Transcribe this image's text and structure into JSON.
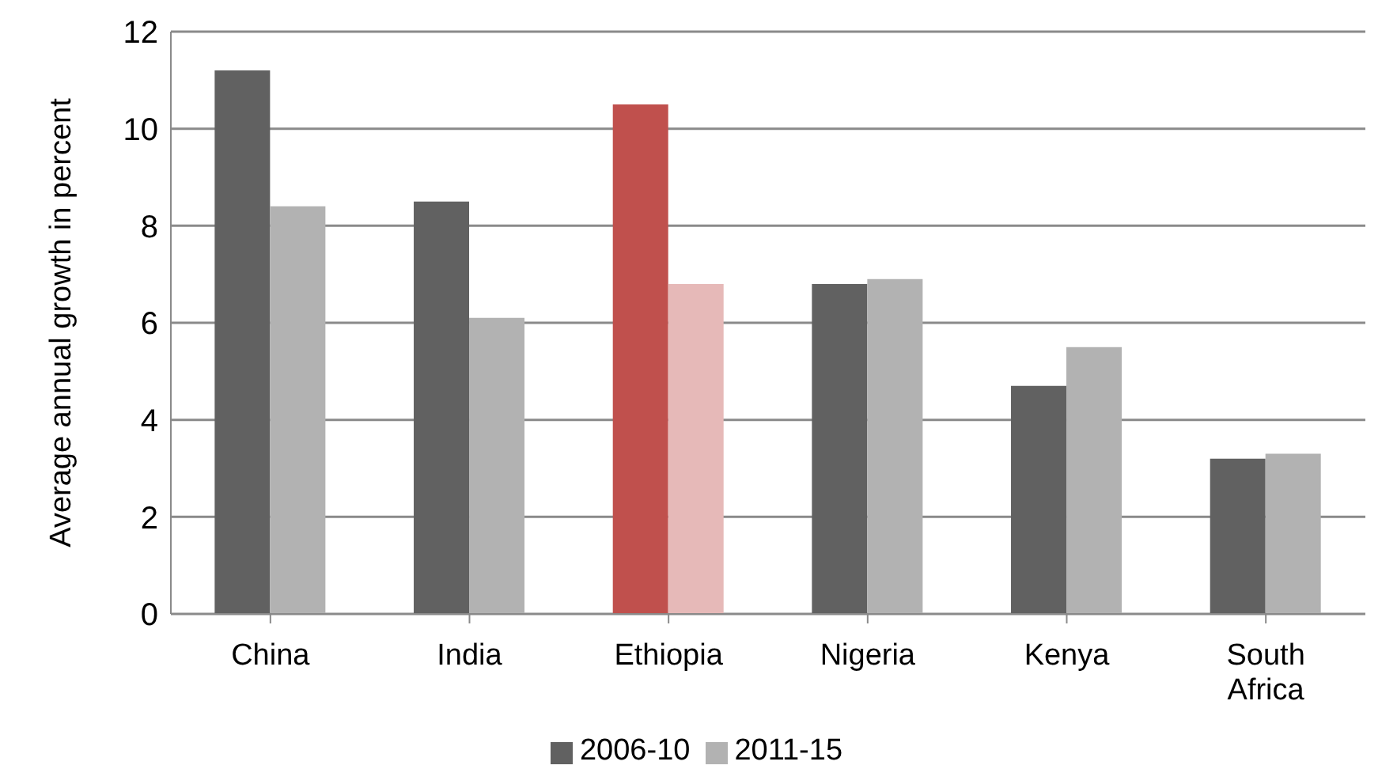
{
  "chart_data": {
    "type": "bar",
    "ylabel": "Average annual  growth in percent",
    "categories": [
      "China",
      "India",
      "Ethiopia",
      "Nigeria",
      "Kenya",
      "South Africa"
    ],
    "series": [
      {
        "name": "2006-10",
        "color": "#616161",
        "colors": [
          "#616161",
          "#616161",
          "#c0504d",
          "#616161",
          "#616161",
          "#616161"
        ],
        "values": [
          11.2,
          8.5,
          10.5,
          6.8,
          4.7,
          3.2
        ]
      },
      {
        "name": "2011-15",
        "color": "#b2b2b2",
        "colors": [
          "#b2b2b2",
          "#b2b2b2",
          "#e6b9b8",
          "#b2b2b2",
          "#b2b2b2",
          "#b2b2b2"
        ],
        "values": [
          8.4,
          6.1,
          6.8,
          6.9,
          5.5,
          3.3
        ]
      }
    ],
    "ylim": [
      0,
      12
    ],
    "yticks": [
      0,
      2,
      4,
      6,
      8,
      10,
      12
    ],
    "grid": "y",
    "legend": "bottom"
  }
}
